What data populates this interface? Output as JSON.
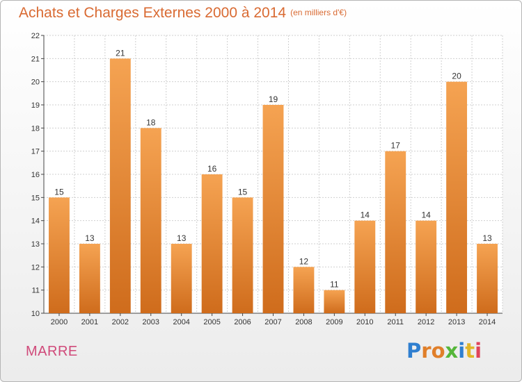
{
  "header": {
    "title": "Achats et Charges Externes 2000 à 2014",
    "subtitle": "(en milliers d'€)"
  },
  "footer": {
    "city": "MARRE",
    "logo_letters": [
      {
        "char": "P",
        "color": "#2f7fd0"
      },
      {
        "char": "r",
        "color": "#e07f2a"
      },
      {
        "char": "o",
        "color": "#e07f2a"
      },
      {
        "char": "x",
        "color": "#55b63a"
      },
      {
        "char": "i",
        "color": "#2f7fd0"
      },
      {
        "char": "t",
        "color": "#e2b628"
      },
      {
        "char": "i",
        "color": "#e0445a"
      }
    ]
  },
  "colors": {
    "bar_top": "#f5a352",
    "bar_bottom": "#cf6c1c",
    "grid": "#cfcfcf",
    "plot_background": "#ffffff"
  },
  "chart_data": {
    "type": "bar",
    "title": "Achats et Charges Externes 2000 à 2014",
    "subtitle": "(en milliers d'€)",
    "categories": [
      "2000",
      "2001",
      "2002",
      "2003",
      "2004",
      "2005",
      "2006",
      "2007",
      "2008",
      "2009",
      "2010",
      "2011",
      "2012",
      "2013",
      "2014"
    ],
    "values": [
      15,
      13,
      21,
      18,
      13,
      16,
      15,
      19,
      12,
      11,
      14,
      17,
      14,
      20,
      13
    ],
    "ylim": [
      10,
      22
    ],
    "yticks": [
      10,
      11,
      12,
      13,
      14,
      15,
      16,
      17,
      18,
      19,
      20,
      21,
      22
    ],
    "grid": true,
    "xlabel": "",
    "ylabel": ""
  }
}
